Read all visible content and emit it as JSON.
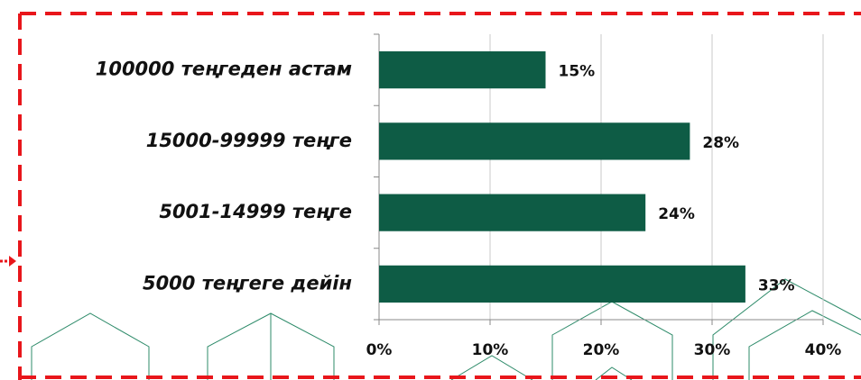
{
  "chart_data": {
    "type": "bar",
    "orientation": "horizontal",
    "categories": [
      "100000 теңгеден астам",
      "15000-99999 теңге",
      "5001-14999 теңге",
      "5000 теңгеге дейін"
    ],
    "values": [
      15,
      28,
      24,
      33
    ],
    "value_labels": [
      "15%",
      "28%",
      "24%",
      "33%"
    ],
    "color": "#0e5c45",
    "xlim": [
      0,
      40
    ],
    "xticks": [
      {
        "value": 0,
        "label": "0%"
      },
      {
        "value": 10,
        "label": "10%"
      },
      {
        "value": 20,
        "label": "20%"
      },
      {
        "value": 30,
        "label": "30%"
      },
      {
        "value": 40,
        "label": "40%"
      }
    ],
    "grid": true
  }
}
